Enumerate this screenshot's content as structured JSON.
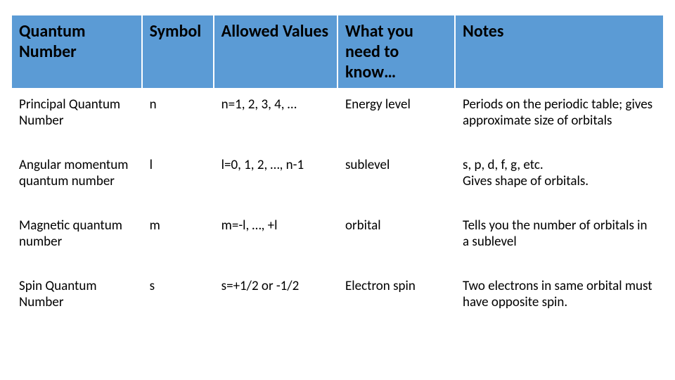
{
  "table": {
    "header_bg": "#5b9bd5",
    "header_text_color": "#000000",
    "header_fontsize": 24,
    "body_fontsize": 19,
    "border_color": "#ffffff",
    "columns": [
      {
        "label": "Quantum Number",
        "width_pct": 20
      },
      {
        "label": "Symbol",
        "width_pct": 11
      },
      {
        "label": "Allowed Values",
        "width_pct": 19
      },
      {
        "label": "What you need to know…",
        "width_pct": 18
      },
      {
        "label": "Notes",
        "width_pct": 32
      }
    ],
    "rows": [
      {
        "quantum_number": "Principal Quantum Number",
        "symbol": "n",
        "allowed_values": "n=1, 2, 3, 4, …",
        "know": "Energy level",
        "notes": "Periods on the periodic table; gives approximate size of orbitals"
      },
      {
        "quantum_number": "Angular momentum quantum number",
        "symbol": "l",
        "allowed_values": "l=0, 1, 2, …, n-1",
        "know": "sublevel",
        "notes": "s, p, d, f, g, etc.\nGives shape of orbitals."
      },
      {
        "quantum_number": "Magnetic quantum number",
        "symbol": "m",
        "allowed_values": "m=-l, …, +l",
        "know": "orbital",
        "notes": "Tells you the number of orbitals in a sublevel"
      },
      {
        "quantum_number": "Spin Quantum Number",
        "symbol": "s",
        "allowed_values": "s=+1/2 or -1/2",
        "know": "Electron spin",
        "notes": "Two electrons in same orbital must have opposite spin."
      }
    ]
  }
}
